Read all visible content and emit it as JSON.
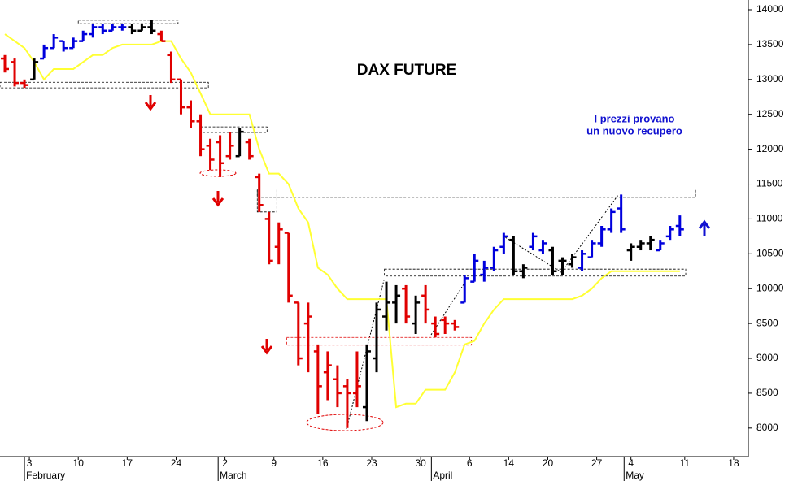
{
  "chart_data": {
    "type": "ohlc",
    "title": "DAX FUTURE",
    "annotation": [
      "I prezzi provano",
      "un nuovo recupero"
    ],
    "xlim": [
      -0.5,
      76
    ],
    "ylim": [
      7590,
      14140
    ],
    "xticks": [
      {
        "value": 2.5,
        "label": "3"
      },
      {
        "value": 7.5,
        "label": "10"
      },
      {
        "value": 12.5,
        "label": "17"
      },
      {
        "value": 17.5,
        "label": "24"
      },
      {
        "value": 22.5,
        "label": "2"
      },
      {
        "value": 27.5,
        "label": "9"
      },
      {
        "value": 32.5,
        "label": "16"
      },
      {
        "value": 37.5,
        "label": "23"
      },
      {
        "value": 42.5,
        "label": "30"
      },
      {
        "value": 47.5,
        "label": "6"
      },
      {
        "value": 51.5,
        "label": "14"
      },
      {
        "value": 55.5,
        "label": "20"
      },
      {
        "value": 60.5,
        "label": "27"
      },
      {
        "value": 64,
        "label": "4"
      },
      {
        "value": 69.5,
        "label": "11"
      },
      {
        "value": 74.5,
        "label": "18"
      }
    ],
    "month_ticks": [
      {
        "value": 2,
        "label": "February"
      },
      {
        "value": 21.8,
        "label": "March"
      },
      {
        "value": 43.6,
        "label": "April"
      },
      {
        "value": 63.3,
        "label": "May"
      }
    ],
    "yticks": [
      8000,
      8500,
      9000,
      9500,
      10000,
      10500,
      11000,
      11500,
      12000,
      12500,
      13000,
      13500,
      14000
    ],
    "open": [
      13300,
      13250,
      12950,
      13000,
      13300,
      13450,
      13550,
      13450,
      13550,
      13650,
      13750,
      13700,
      13750,
      13750,
      13700,
      13750,
      13650,
      13350,
      13000,
      12600,
      12400,
      12050,
      12100,
      11900,
      11900,
      12100,
      11600,
      11000,
      10600,
      10800,
      9800,
      9500,
      9100,
      8800,
      8700,
      8600,
      8500,
      8300,
      9000,
      9600,
      9800,
      10000,
      9500,
      9900,
      9500,
      9550,
      9500,
      9800,
      10100,
      10200,
      10300,
      10600,
      10700,
      10250,
      10600,
      10550,
      10550,
      10400,
      10350,
      10300,
      10450,
      10650,
      10850,
      11150,
      10550,
      10600,
      10650,
      10550,
      10750,
      10900
    ],
    "high": [
      13350,
      13300,
      13000,
      13300,
      13500,
      13650,
      13550,
      13600,
      13700,
      13800,
      13800,
      13800,
      13800,
      13800,
      13800,
      13850,
      13700,
      13400,
      13000,
      12700,
      12500,
      12150,
      12200,
      12250,
      12300,
      12150,
      11650,
      11100,
      10950,
      10800,
      9800,
      9800,
      9200,
      9100,
      8900,
      8700,
      9100,
      9200,
      9800,
      10100,
      10050,
      10050,
      9900,
      10050,
      9600,
      9600,
      9550,
      10200,
      10500,
      10400,
      10600,
      10800,
      10750,
      10350,
      10800,
      10700,
      10600,
      10450,
      10500,
      10550,
      10700,
      10900,
      11150,
      11350,
      10650,
      10700,
      10750,
      10700,
      10900,
      11050
    ],
    "low": [
      13100,
      12900,
      12880,
      13000,
      13300,
      13450,
      13400,
      13450,
      13550,
      13600,
      13650,
      13700,
      13700,
      13650,
      13700,
      13650,
      13550,
      12950,
      12500,
      12300,
      11900,
      11700,
      11600,
      11850,
      11900,
      11850,
      11100,
      10350,
      10350,
      9800,
      8900,
      8800,
      8200,
      8400,
      8300,
      8000,
      8300,
      8100,
      8800,
      9400,
      9500,
      9500,
      9350,
      9500,
      9300,
      9350,
      9400,
      9800,
      10100,
      10100,
      10250,
      10500,
      10200,
      10150,
      10550,
      10500,
      10200,
      10200,
      10300,
      10250,
      10450,
      10600,
      10800,
      10800,
      10400,
      10550,
      10550,
      10550,
      10700,
      10750
    ],
    "close": [
      13150,
      12950,
      12920,
      13250,
      13450,
      13600,
      13450,
      13550,
      13650,
      13750,
      13700,
      13750,
      13750,
      13700,
      13750,
      13700,
      13550,
      13000,
      12600,
      12400,
      12000,
      11850,
      11800,
      12050,
      12250,
      11900,
      11200,
      10400,
      10850,
      9900,
      9000,
      9600,
      8600,
      8900,
      8500,
      8500,
      8600,
      9100,
      9700,
      9800,
      9900,
      9600,
      9800,
      9700,
      9350,
      9500,
      9450,
      10150,
      10400,
      10300,
      10550,
      10750,
      10250,
      10300,
      10750,
      10650,
      10250,
      10400,
      10450,
      10500,
      10650,
      10850,
      11100,
      10850,
      10600,
      10650,
      10700,
      10650,
      10850,
      10850
    ],
    "colors": [
      "#e00000",
      "#e00000",
      "#e00000",
      "#000000",
      "#0000dd",
      "#0000dd",
      "#0000dd",
      "#0000dd",
      "#0000dd",
      "#0000dd",
      "#0000dd",
      "#0000dd",
      "#0000dd",
      "#000000",
      "#000000",
      "#000000",
      "#e00000",
      "#e00000",
      "#e00000",
      "#e00000",
      "#e00000",
      "#e00000",
      "#e00000",
      "#e00000",
      "#000000",
      "#e00000",
      "#e00000",
      "#e00000",
      "#e00000",
      "#e00000",
      "#e00000",
      "#e00000",
      "#e00000",
      "#e00000",
      "#e00000",
      "#e00000",
      "#e00000",
      "#000000",
      "#000000",
      "#000000",
      "#000000",
      "#e00000",
      "#000000",
      "#e00000",
      "#e00000",
      "#e00000",
      "#e00000",
      "#0000dd",
      "#0000dd",
      "#0000dd",
      "#0000dd",
      "#0000dd",
      "#000000",
      "#000000",
      "#0000dd",
      "#0000dd",
      "#000000",
      "#000000",
      "#000000",
      "#0000dd",
      "#0000dd",
      "#0000dd",
      "#0000dd",
      "#0000dd",
      "#000000",
      "#000000",
      "#000000",
      "#0000dd",
      "#0000dd",
      "#0000dd"
    ],
    "trend": {
      "color": "#ffff33",
      "values": [
        13650,
        13550,
        13450,
        13250,
        13000,
        13150,
        13150,
        13150,
        13250,
        13350,
        13350,
        13450,
        13500,
        13500,
        13500,
        13500,
        13550,
        13550,
        13300,
        13100,
        12800,
        12500,
        12500,
        12500,
        12500,
        12500,
        12000,
        11650,
        11650,
        11500,
        11150,
        10950,
        10300,
        10200,
        10000,
        9850,
        9850,
        9850,
        9850,
        9850,
        8300,
        8350,
        8350,
        8550,
        8550,
        8550,
        8800,
        9200,
        9250,
        9500,
        9700,
        9850,
        9850,
        9850,
        9850,
        9850,
        9850,
        9850,
        9850,
        9900,
        10000,
        10150,
        10250,
        10250,
        10250,
        10250,
        10250,
        10250,
        10250,
        10250
      ]
    },
    "levels": [
      {
        "x": [
          7.5,
          17.7
        ],
        "y": [
          13800,
          13850
        ]
      },
      {
        "x": [
          -0.5,
          20.8
        ],
        "y": [
          12880,
          12960
        ]
      },
      {
        "x": [
          20,
          26.8
        ],
        "y": [
          12240,
          12320
        ]
      },
      {
        "x": [
          25.8,
          70.6
        ],
        "y": [
          11310,
          11430
        ]
      },
      {
        "x": [
          25.8,
          27.8
        ],
        "y": [
          11100,
          11430
        ]
      },
      {
        "x": [
          38.8,
          69.6
        ],
        "y": [
          10180,
          10280
        ]
      },
      {
        "x": [
          28.8,
          47.7
        ],
        "y": [
          9190,
          9300
        ]
      }
    ]
  }
}
